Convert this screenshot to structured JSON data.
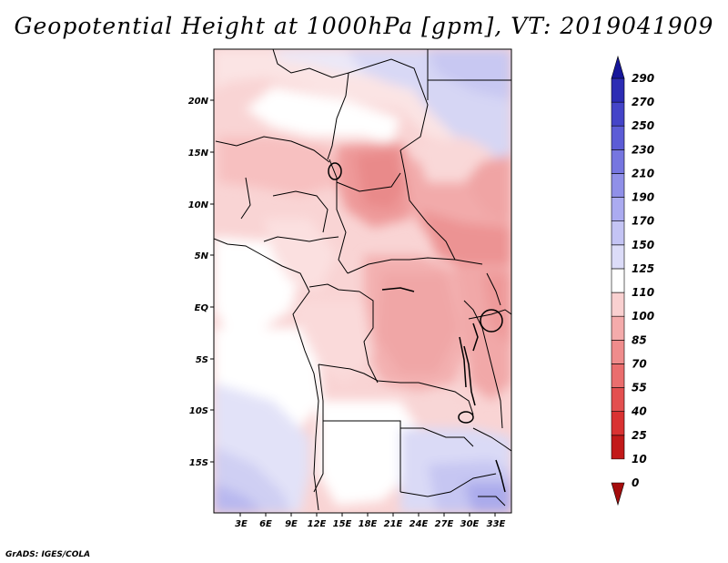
{
  "title": "Geopotential Height at 1000hPa [gpm], VT: 2019041909",
  "credit": "GrADS: IGES/COLA",
  "map": {
    "variable": "Geopotential Height",
    "level_hpa": 1000,
    "units": "gpm",
    "valid_time": "2019041909",
    "lon_range": [
      0,
      34
    ],
    "lat_range": [
      -20,
      24
    ],
    "lon_ticks": [
      "3E",
      "6E",
      "9E",
      "12E",
      "15E",
      "18E",
      "21E",
      "24E",
      "27E",
      "30E",
      "33E"
    ],
    "lat_ticks": [
      "20N",
      "15N",
      "10N",
      "5N",
      "EQ",
      "5S",
      "10S",
      "15S"
    ]
  },
  "colorbar": {
    "levels": [
      "0",
      "10",
      "25",
      "40",
      "55",
      "70",
      "85",
      "100",
      "110",
      "125",
      "150",
      "170",
      "190",
      "210",
      "230",
      "250",
      "270",
      "290"
    ],
    "colors": [
      "#a50d0d",
      "#c21a1a",
      "#d93232",
      "#e35050",
      "#ea6e6e",
      "#ef8c8c",
      "#f4abab",
      "#f9d0d0",
      "#ffffff",
      "#dcdcf8",
      "#c4c4f4",
      "#ababf0",
      "#9090e8",
      "#7676e0",
      "#5c5cd6",
      "#4444c8",
      "#2c2cb4",
      "#16169a"
    ]
  }
}
